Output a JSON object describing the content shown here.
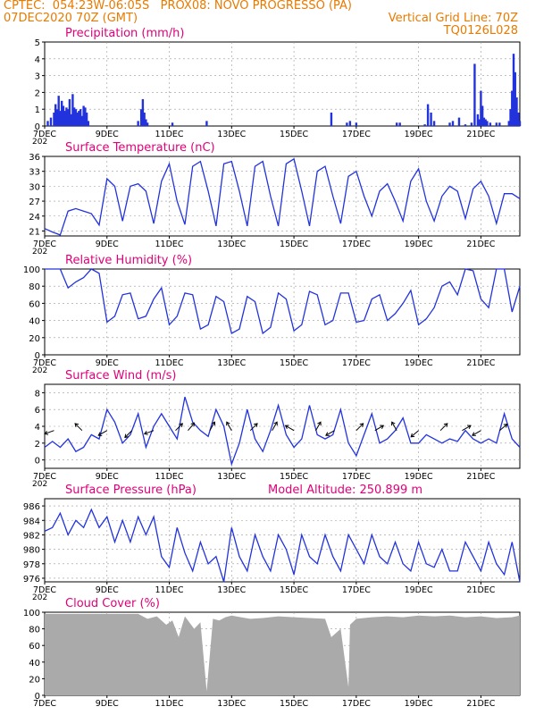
{
  "header": {
    "line1_left": "CPTEC:  054:23W-06:05S   PROX08: NOVO PROGRESSO (PA)",
    "line2_left": "07DEC2020 70Z (GMT)",
    "line2_right": "Vertical Grid Line: 70Z",
    "line3_right": "TQ0126L028",
    "altitude": "Model Altitude: 250.899 m"
  },
  "colors": {
    "title": "#e0007a",
    "header": "#e87a00",
    "series": "#2233dd",
    "cloud": "#aaaaaa",
    "arrow": "#000000"
  },
  "x_axis": {
    "tick_labels": [
      "7DEC",
      "9DEC",
      "11DEC",
      "13DEC",
      "15DEC",
      "17DEC",
      "19DEC",
      "21DEC"
    ],
    "year_fragment": "202"
  },
  "chart_data": [
    {
      "type": "bar",
      "title": "Precipitation (mm/h)",
      "ylim": [
        0,
        5
      ],
      "yticks": [
        0,
        1,
        2,
        3,
        4,
        5
      ],
      "x": [
        7.1,
        7.2,
        7.3,
        7.35,
        7.4,
        7.45,
        7.5,
        7.55,
        7.6,
        7.65,
        7.7,
        7.75,
        7.8,
        7.85,
        7.9,
        7.95,
        8.0,
        8.05,
        8.1,
        8.15,
        8.2,
        8.25,
        8.3,
        8.35,
        8.4,
        10.0,
        10.1,
        10.15,
        10.2,
        10.25,
        10.3,
        11.1,
        12.2,
        16.2,
        16.7,
        16.8,
        17.0,
        18.3,
        18.4,
        19.2,
        19.3,
        19.4,
        19.5,
        20.0,
        20.1,
        20.3,
        20.5,
        20.7,
        20.8,
        20.9,
        20.95,
        21.0,
        21.05,
        21.1,
        21.15,
        21.2,
        21.3,
        21.5,
        21.6,
        21.9,
        21.95,
        22.0,
        22.05,
        22.1,
        22.15,
        22.2,
        22.25
      ],
      "values": [
        0.3,
        0.5,
        0.8,
        1.3,
        1.0,
        1.8,
        0.9,
        1.5,
        1.2,
        0.9,
        1.1,
        1.0,
        1.6,
        0.7,
        1.9,
        1.1,
        1.0,
        0.8,
        0.9,
        1.0,
        0.6,
        1.2,
        1.1,
        0.8,
        0.3,
        0.3,
        1.0,
        1.6,
        0.8,
        0.4,
        0.2,
        0.2,
        0.3,
        0.8,
        0.2,
        0.3,
        0.2,
        0.2,
        0.2,
        0.1,
        1.3,
        0.8,
        0.3,
        0.2,
        0.3,
        0.5,
        0.1,
        0.2,
        3.7,
        0.7,
        0.4,
        2.1,
        1.2,
        0.5,
        0.4,
        0.3,
        0.2,
        0.2,
        0.2,
        0.3,
        1.0,
        2.1,
        4.3,
        3.2,
        1.7,
        0.8,
        0.3
      ]
    },
    {
      "type": "line",
      "title": "Surface Temperature (nC)",
      "ylim": [
        20,
        36
      ],
      "yticks": [
        21,
        24,
        27,
        30,
        33,
        36
      ],
      "x": [
        7,
        7.25,
        7.5,
        7.75,
        8,
        8.25,
        8.5,
        8.75,
        9,
        9.25,
        9.5,
        9.75,
        10,
        10.25,
        10.5,
        10.75,
        11,
        11.25,
        11.5,
        11.75,
        12,
        12.25,
        12.5,
        12.75,
        13,
        13.25,
        13.5,
        13.75,
        14,
        14.25,
        14.5,
        14.75,
        15,
        15.25,
        15.5,
        15.75,
        16,
        16.25,
        16.5,
        16.75,
        17,
        17.25,
        17.5,
        17.75,
        18,
        18.25,
        18.5,
        18.75,
        19,
        19.25,
        19.5,
        19.75,
        20,
        20.25,
        20.5,
        20.75,
        21,
        21.25,
        21.5,
        21.75,
        22,
        22.25
      ],
      "values": [
        21.5,
        20.8,
        20.2,
        25,
        25.5,
        25,
        24.5,
        22.2,
        31.5,
        30,
        23,
        30,
        30.5,
        29,
        22.5,
        31,
        34.5,
        27,
        22.3,
        34,
        35,
        29,
        22,
        34.5,
        35,
        29,
        22,
        34,
        35,
        28,
        22,
        34.5,
        35.5,
        29,
        22,
        33,
        34,
        28,
        22.5,
        32,
        33,
        28,
        24,
        29,
        30.5,
        27,
        23,
        31,
        33.5,
        27,
        23,
        28,
        30,
        29,
        23.5,
        29.5,
        31,
        28,
        22.5,
        28.5,
        28.5,
        27.5
      ]
    },
    {
      "type": "line",
      "title": "Relative Humidity (%)",
      "ylim": [
        0,
        100
      ],
      "yticks": [
        0,
        20,
        40,
        60,
        80,
        100
      ],
      "x": [
        7,
        7.25,
        7.5,
        7.75,
        8,
        8.25,
        8.5,
        8.75,
        9,
        9.25,
        9.5,
        9.75,
        10,
        10.25,
        10.5,
        10.75,
        11,
        11.25,
        11.5,
        11.75,
        12,
        12.25,
        12.5,
        12.75,
        13,
        13.25,
        13.5,
        13.75,
        14,
        14.25,
        14.5,
        14.75,
        15,
        15.25,
        15.5,
        15.75,
        16,
        16.25,
        16.5,
        16.75,
        17,
        17.25,
        17.5,
        17.75,
        18,
        18.25,
        18.5,
        18.75,
        19,
        19.25,
        19.5,
        19.75,
        20,
        20.25,
        20.5,
        20.75,
        21,
        21.25,
        21.5,
        21.75,
        22,
        22.25
      ],
      "values": [
        100,
        100,
        100,
        78,
        85,
        90,
        100,
        95,
        38,
        45,
        70,
        72,
        42,
        45,
        65,
        78,
        35,
        45,
        72,
        70,
        30,
        35,
        68,
        62,
        25,
        30,
        68,
        62,
        25,
        32,
        72,
        65,
        28,
        35,
        74,
        70,
        35,
        40,
        72,
        72,
        38,
        40,
        65,
        70,
        40,
        48,
        60,
        75,
        35,
        42,
        55,
        80,
        85,
        70,
        100,
        98,
        65,
        55,
        100,
        100,
        50,
        80
      ]
    },
    {
      "type": "line",
      "title": "Surface Wind (m/s)",
      "ylim": [
        -1,
        9
      ],
      "yticks": [
        0,
        2,
        4,
        6,
        8
      ],
      "x": [
        7,
        7.25,
        7.5,
        7.75,
        8,
        8.25,
        8.5,
        8.75,
        9,
        9.25,
        9.5,
        9.75,
        10,
        10.25,
        10.5,
        10.75,
        11,
        11.25,
        11.5,
        11.75,
        12,
        12.25,
        12.5,
        12.75,
        13,
        13.25,
        13.5,
        13.75,
        14,
        14.25,
        14.5,
        14.75,
        15,
        15.25,
        15.5,
        15.75,
        16,
        16.25,
        16.5,
        16.75,
        17,
        17.25,
        17.5,
        17.75,
        18,
        18.25,
        18.5,
        18.75,
        19,
        19.25,
        19.5,
        19.75,
        20,
        20.25,
        20.5,
        20.75,
        21,
        21.25,
        21.5,
        21.75,
        22,
        22.25
      ],
      "values": [
        1.5,
        2.2,
        1.5,
        2.5,
        1.0,
        1.5,
        3.0,
        2.5,
        6.0,
        4.5,
        2.0,
        3.0,
        5.5,
        1.5,
        4.0,
        5.5,
        4.0,
        2.5,
        7.5,
        4.5,
        3.5,
        2.8,
        6.0,
        4.0,
        -0.5,
        2.0,
        6.0,
        2.5,
        1.0,
        3.5,
        6.5,
        3.0,
        1.5,
        2.5,
        6.5,
        3.0,
        2.5,
        3.0,
        6.0,
        2.0,
        0.5,
        3.0,
        5.5,
        2.0,
        2.5,
        3.5,
        5.0,
        2.0,
        2.0,
        3.0,
        2.5,
        2.0,
        2.5,
        2.2,
        3.5,
        2.5,
        2.0,
        2.5,
        2.0,
        5.5,
        2.5,
        1.5
      ],
      "arrows_x": [
        7.3,
        8.2,
        9.0,
        9.8,
        10.5,
        11.2,
        11.6,
        12.3,
        13.0,
        13.6,
        14.3,
        15.0,
        15.7,
        16.3,
        17.0,
        17.6,
        18.3,
        19.0,
        19.7,
        20.4,
        21.0,
        21.6
      ],
      "arrows_dir_deg": [
        200,
        135,
        210,
        225,
        200,
        45,
        50,
        60,
        120,
        45,
        60,
        150,
        60,
        210,
        45,
        30,
        120,
        220,
        45,
        30,
        210,
        40
      ]
    },
    {
      "type": "line",
      "title": "Surface Pressure (hPa)",
      "ylim": [
        975.5,
        987
      ],
      "yticks": [
        976,
        978,
        980,
        982,
        984,
        986
      ],
      "x": [
        7,
        7.25,
        7.5,
        7.75,
        8,
        8.25,
        8.5,
        8.75,
        9,
        9.25,
        9.5,
        9.75,
        10,
        10.25,
        10.5,
        10.75,
        11,
        11.25,
        11.5,
        11.75,
        12,
        12.25,
        12.5,
        12.75,
        13,
        13.25,
        13.5,
        13.75,
        14,
        14.25,
        14.5,
        14.75,
        15,
        15.25,
        15.5,
        15.75,
        16,
        16.25,
        16.5,
        16.75,
        17,
        17.25,
        17.5,
        17.75,
        18,
        18.25,
        18.5,
        18.75,
        19,
        19.25,
        19.5,
        19.75,
        20,
        20.25,
        20.5,
        20.75,
        21,
        21.25,
        21.5,
        21.75,
        22,
        22.25
      ],
      "values": [
        982.5,
        983,
        985,
        982,
        984,
        983,
        985.5,
        983,
        984.5,
        981,
        984,
        981,
        984.5,
        982,
        984.5,
        979,
        977.5,
        983,
        979.5,
        977,
        981,
        978,
        979,
        975.5,
        983,
        979,
        977,
        982,
        979,
        977,
        982,
        980,
        976.5,
        982,
        979,
        978,
        982,
        979,
        977,
        982,
        980,
        978,
        982,
        979,
        978,
        981,
        978,
        977,
        981,
        978,
        977.5,
        980,
        977,
        977,
        981,
        979,
        977,
        981,
        978,
        976.5,
        981,
        975.5
      ]
    },
    {
      "type": "area",
      "title": "Cloud Cover (%)",
      "ylim": [
        0,
        100
      ],
      "yticks": [
        0,
        20,
        40,
        60,
        80,
        100
      ],
      "x": [
        7,
        7.5,
        8,
        8.5,
        9,
        9.5,
        10,
        10.3,
        10.6,
        10.9,
        11.1,
        11.3,
        11.5,
        11.8,
        12.0,
        12.2,
        12.4,
        12.6,
        12.8,
        13.0,
        13.3,
        13.6,
        14.0,
        14.5,
        15.0,
        15.5,
        16.0,
        16.2,
        16.5,
        16.75,
        16.8,
        17.0,
        17.5,
        18.0,
        18.5,
        19.0,
        19.5,
        20.0,
        20.5,
        21.0,
        21.5,
        22.0,
        22.25
      ],
      "values": [
        98,
        98,
        98,
        98,
        98,
        98,
        98,
        92,
        95,
        85,
        90,
        70,
        95,
        80,
        88,
        5,
        92,
        90,
        94,
        96,
        94,
        92,
        93,
        95,
        94,
        93,
        92,
        70,
        80,
        10,
        85,
        92,
        94,
        95,
        94,
        96,
        95,
        96,
        94,
        95,
        93,
        94,
        96
      ]
    }
  ]
}
